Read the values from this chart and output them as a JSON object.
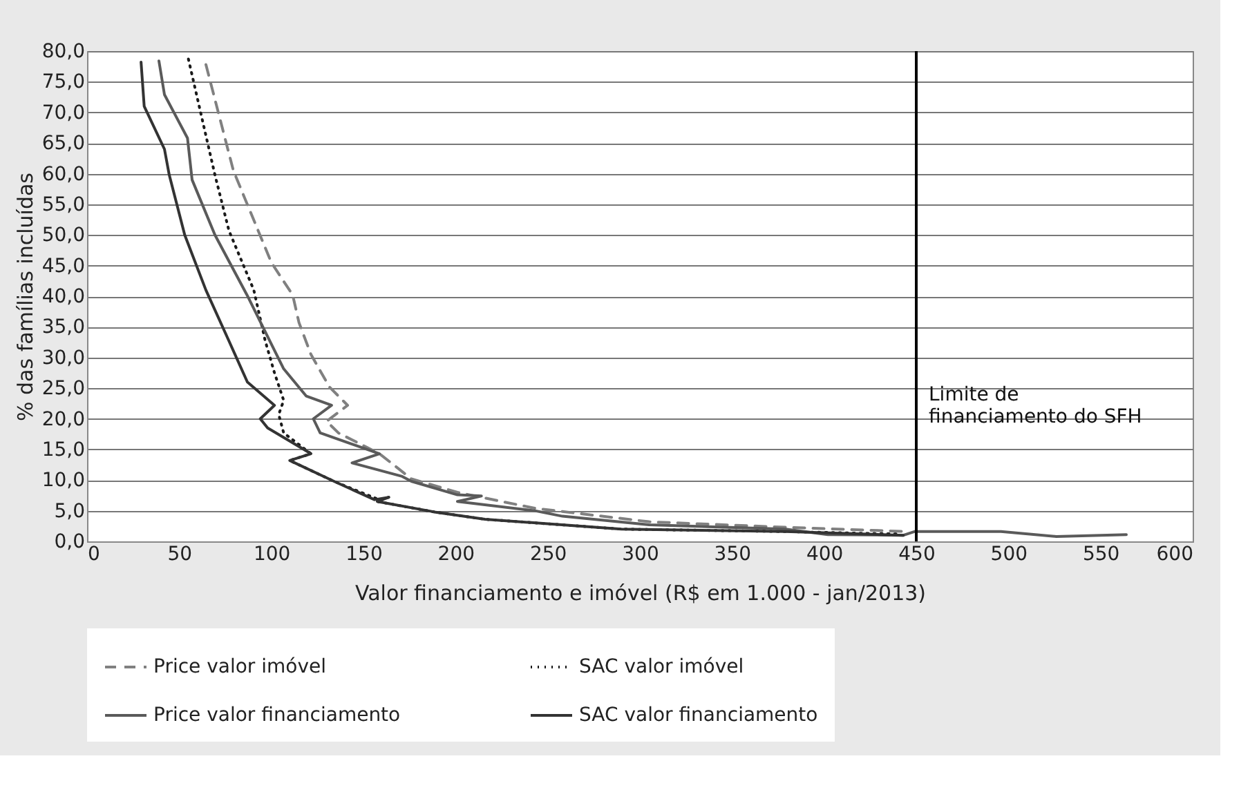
{
  "chart_data": {
    "type": "line",
    "xlabel": "Valor financiamento e imóvel (R$ em 1.000 - jan/2013)",
    "ylabel": "% das famílias incluídas",
    "xlim": [
      0,
      600
    ],
    "xticks": [
      0,
      50,
      100,
      150,
      200,
      250,
      300,
      350,
      400,
      450,
      500,
      550,
      600
    ],
    "ylim": [
      0,
      80
    ],
    "yticks": [
      {
        "value": 0,
        "label": "0,0"
      },
      {
        "value": 5,
        "label": "5,0"
      },
      {
        "value": 10,
        "label": "10,0"
      },
      {
        "value": 15,
        "label": "15,0"
      },
      {
        "value": 20,
        "label": "20,0"
      },
      {
        "value": 25,
        "label": "25,0"
      },
      {
        "value": 30,
        "label": "30,0"
      },
      {
        "value": 35,
        "label": "35,0"
      },
      {
        "value": 40,
        "label": "40,0"
      },
      {
        "value": 45,
        "label": "45,0"
      },
      {
        "value": 50,
        "label": "50,0"
      },
      {
        "value": 55,
        "label": "55,0"
      },
      {
        "value": 60,
        "label": "60,0"
      },
      {
        "value": 65,
        "label": "65,0"
      },
      {
        "value": 70,
        "label": "70,0"
      },
      {
        "value": 75,
        "label": "75,0"
      },
      {
        "value": 80,
        "label": "80,0"
      }
    ],
    "grid": "y",
    "legend": "bottom",
    "marker": "none",
    "series": [
      {
        "name": "Price valor imóvel",
        "color": "#808080",
        "line_style": "dashed",
        "x": [
          64.5,
          79.4,
          100,
          111.6,
          115,
          121.5,
          131.5,
          141.4,
          130,
          136.4,
          158.7,
          176,
          201,
          243,
          305,
          379,
          445
        ],
        "values": [
          77.8,
          60.5,
          45.5,
          40.2,
          35.7,
          30.5,
          25.2,
          22.2,
          19.6,
          17.7,
          14.3,
          10.2,
          8.0,
          5.4,
          3.2,
          2.3,
          1.6
        ]
      },
      {
        "name": "SAC valor imóvel",
        "color": "#1a1a1a",
        "line_style": "dotted",
        "x": [
          55,
          62,
          69.4,
          77,
          90.5,
          96.7,
          101.7,
          106.7,
          104,
          106.7,
          121.5,
          110,
          134,
          158.5,
          163.7,
          157.5,
          188.5,
          216,
          290,
          379,
          440
        ],
        "values": [
          78.7,
          69.5,
          59.8,
          50.7,
          41,
          32.7,
          27.5,
          23,
          20.7,
          17.7,
          14.3,
          13.2,
          9.8,
          6.8,
          7.2,
          6.5,
          4.8,
          3.6,
          2.0,
          1.6,
          1.2
        ]
      },
      {
        "name": "Price valor financiamento",
        "color": "#5a5a5a",
        "line_style": "solid",
        "x": [
          39,
          42,
          54.5,
          57,
          69.4,
          86.8,
          106.6,
          119,
          132.7,
          122.8,
          126.5,
          158.7,
          143.8,
          171,
          176,
          201,
          214,
          201,
          243,
          258,
          305,
          379,
          402,
          443,
          449,
          496,
          526,
          564
        ],
        "values": [
          78.4,
          72.9,
          65.8,
          59,
          50,
          40.2,
          28.2,
          23.7,
          22.2,
          20,
          17.7,
          14.3,
          12.8,
          10.6,
          9.8,
          7.6,
          7.4,
          6.5,
          5.0,
          4.1,
          2.7,
          2.0,
          1.1,
          1.0,
          1.6,
          1.6,
          0.8,
          1.1
        ]
      },
      {
        "name": "SAC valor financiamento",
        "color": "#333333",
        "line_style": "solid",
        "x": [
          29.3,
          31,
          42,
          44.6,
          53,
          64.5,
          77,
          87,
          101.7,
          94,
          98,
          121.5,
          110,
          134,
          156,
          163.7,
          157.5,
          188.5,
          216,
          290,
          379,
          443
        ],
        "values": [
          78.2,
          71,
          64,
          59.8,
          50,
          41,
          32.7,
          26,
          22.2,
          20,
          18.5,
          14.3,
          13.2,
          9.8,
          6.8,
          7.2,
          6.5,
          4.8,
          3.6,
          2.0,
          1.6,
          1.0
        ]
      }
    ],
    "ref_lines": [
      {
        "axis": "x",
        "value": 450,
        "label": "Limite de financiamento do SFH",
        "color": "#000000"
      }
    ]
  }
}
